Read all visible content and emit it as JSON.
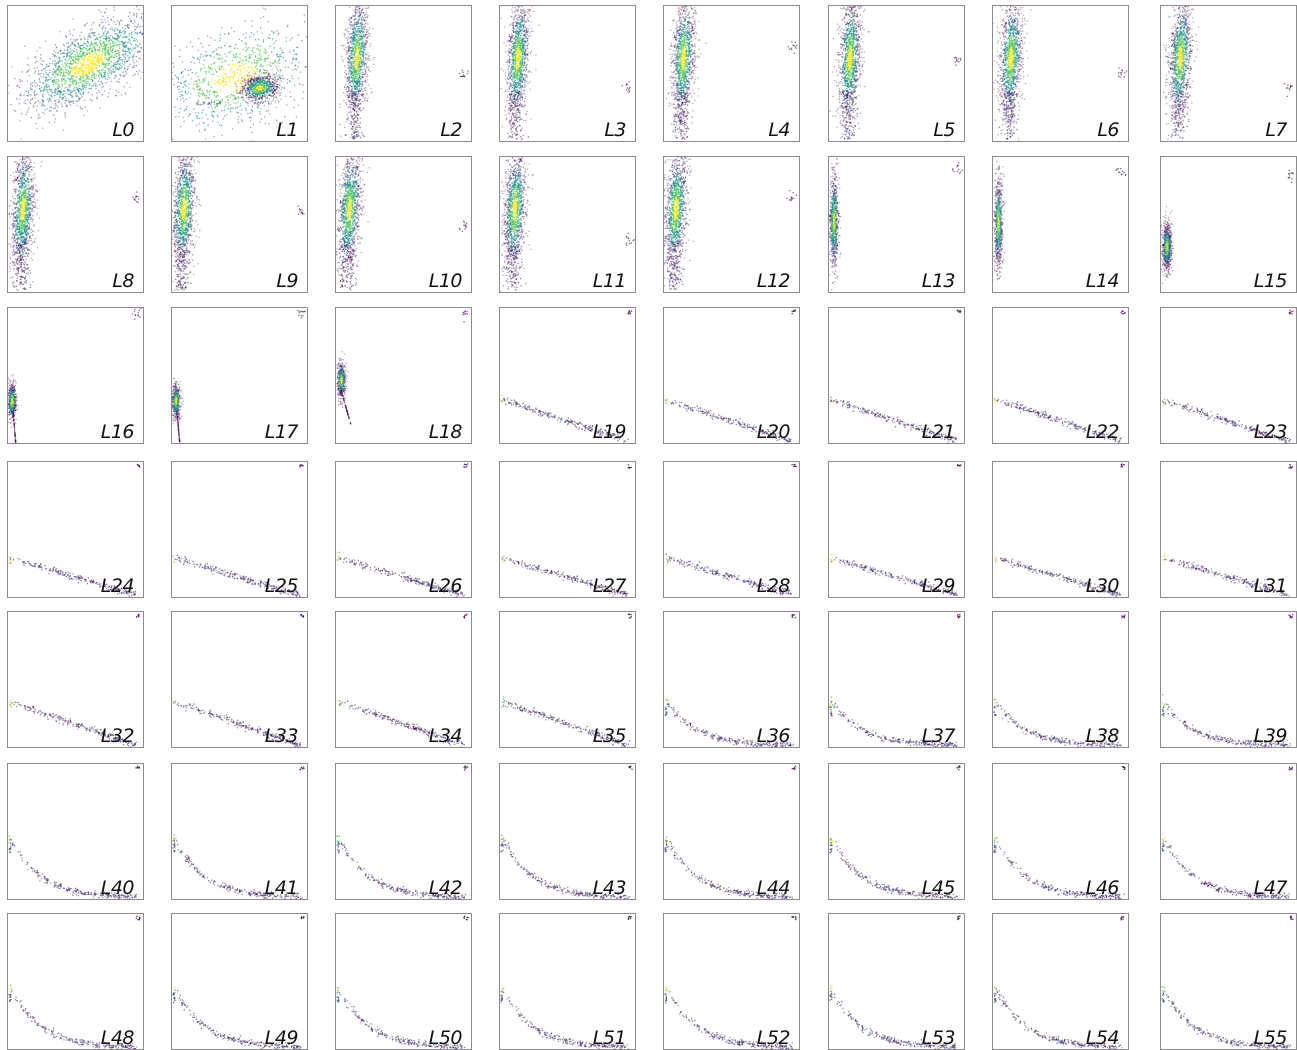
{
  "chart_data": {
    "type": "scatter",
    "grid": false,
    "axes_visible": false,
    "color_map": [
      "#440154",
      "#3b528b",
      "#21918c",
      "#5ec962",
      "#fde725"
    ],
    "layout": {
      "rows": 7,
      "cols": 8
    },
    "panels": [
      {
        "label": "L0",
        "pattern": "broad-diagonal-cloud"
      },
      {
        "label": "L1",
        "pattern": "dense-core-right"
      },
      {
        "label": "L2",
        "pattern": "vertical-cluster"
      },
      {
        "label": "L3",
        "pattern": "vertical-cluster"
      },
      {
        "label": "L4",
        "pattern": "vertical-cluster"
      },
      {
        "label": "L5",
        "pattern": "vertical-cluster"
      },
      {
        "label": "L6",
        "pattern": "vertical-cluster"
      },
      {
        "label": "L7",
        "pattern": "vertical-cluster"
      },
      {
        "label": "L8",
        "pattern": "vertical-cluster"
      },
      {
        "label": "L9",
        "pattern": "vertical-cluster"
      },
      {
        "label": "L10",
        "pattern": "vertical-cluster"
      },
      {
        "label": "L11",
        "pattern": "vertical-cluster"
      },
      {
        "label": "L12",
        "pattern": "vertical-cluster"
      },
      {
        "label": "L13",
        "pattern": "narrow-vertical-cluster"
      },
      {
        "label": "L14",
        "pattern": "narrow-vertical-cluster"
      },
      {
        "label": "L15",
        "pattern": "narrow-vertical-cluster"
      },
      {
        "label": "L16",
        "pattern": "edge-cluster"
      },
      {
        "label": "L17",
        "pattern": "edge-cluster"
      },
      {
        "label": "L18",
        "pattern": "edge-cluster"
      },
      {
        "label": "L19",
        "pattern": "diagonal-tail"
      },
      {
        "label": "L20",
        "pattern": "diagonal-tail"
      },
      {
        "label": "L21",
        "pattern": "diagonal-tail"
      },
      {
        "label": "L22",
        "pattern": "diagonal-tail"
      },
      {
        "label": "L23",
        "pattern": "diagonal-tail"
      },
      {
        "label": "L24",
        "pattern": "diagonal-tail"
      },
      {
        "label": "L25",
        "pattern": "diagonal-tail"
      },
      {
        "label": "L26",
        "pattern": "diagonal-tail"
      },
      {
        "label": "L27",
        "pattern": "diagonal-tail"
      },
      {
        "label": "L28",
        "pattern": "diagonal-tail"
      },
      {
        "label": "L29",
        "pattern": "diagonal-tail"
      },
      {
        "label": "L30",
        "pattern": "diagonal-tail"
      },
      {
        "label": "L31",
        "pattern": "diagonal-tail"
      },
      {
        "label": "L32",
        "pattern": "diagonal-tail"
      },
      {
        "label": "L33",
        "pattern": "diagonal-tail"
      },
      {
        "label": "L34",
        "pattern": "diagonal-tail"
      },
      {
        "label": "L35",
        "pattern": "diagonal-tail"
      },
      {
        "label": "L36",
        "pattern": "curved-tail"
      },
      {
        "label": "L37",
        "pattern": "curved-tail"
      },
      {
        "label": "L38",
        "pattern": "curved-tail"
      },
      {
        "label": "L39",
        "pattern": "curved-tail"
      },
      {
        "label": "L40",
        "pattern": "curved-tail"
      },
      {
        "label": "L41",
        "pattern": "curved-tail"
      },
      {
        "label": "L42",
        "pattern": "curved-tail"
      },
      {
        "label": "L43",
        "pattern": "curved-tail"
      },
      {
        "label": "L44",
        "pattern": "curved-tail"
      },
      {
        "label": "L45",
        "pattern": "curved-tail"
      },
      {
        "label": "L46",
        "pattern": "curved-tail"
      },
      {
        "label": "L47",
        "pattern": "curved-tail"
      },
      {
        "label": "L48",
        "pattern": "curved-tail"
      },
      {
        "label": "L49",
        "pattern": "curved-tail"
      },
      {
        "label": "L50",
        "pattern": "curved-tail"
      },
      {
        "label": "L51",
        "pattern": "curved-tail"
      },
      {
        "label": "L52",
        "pattern": "curved-tail"
      },
      {
        "label": "L53",
        "pattern": "curved-tail"
      },
      {
        "label": "L54",
        "pattern": "curved-tail"
      },
      {
        "label": "L55",
        "pattern": "curved-tail"
      }
    ]
  }
}
